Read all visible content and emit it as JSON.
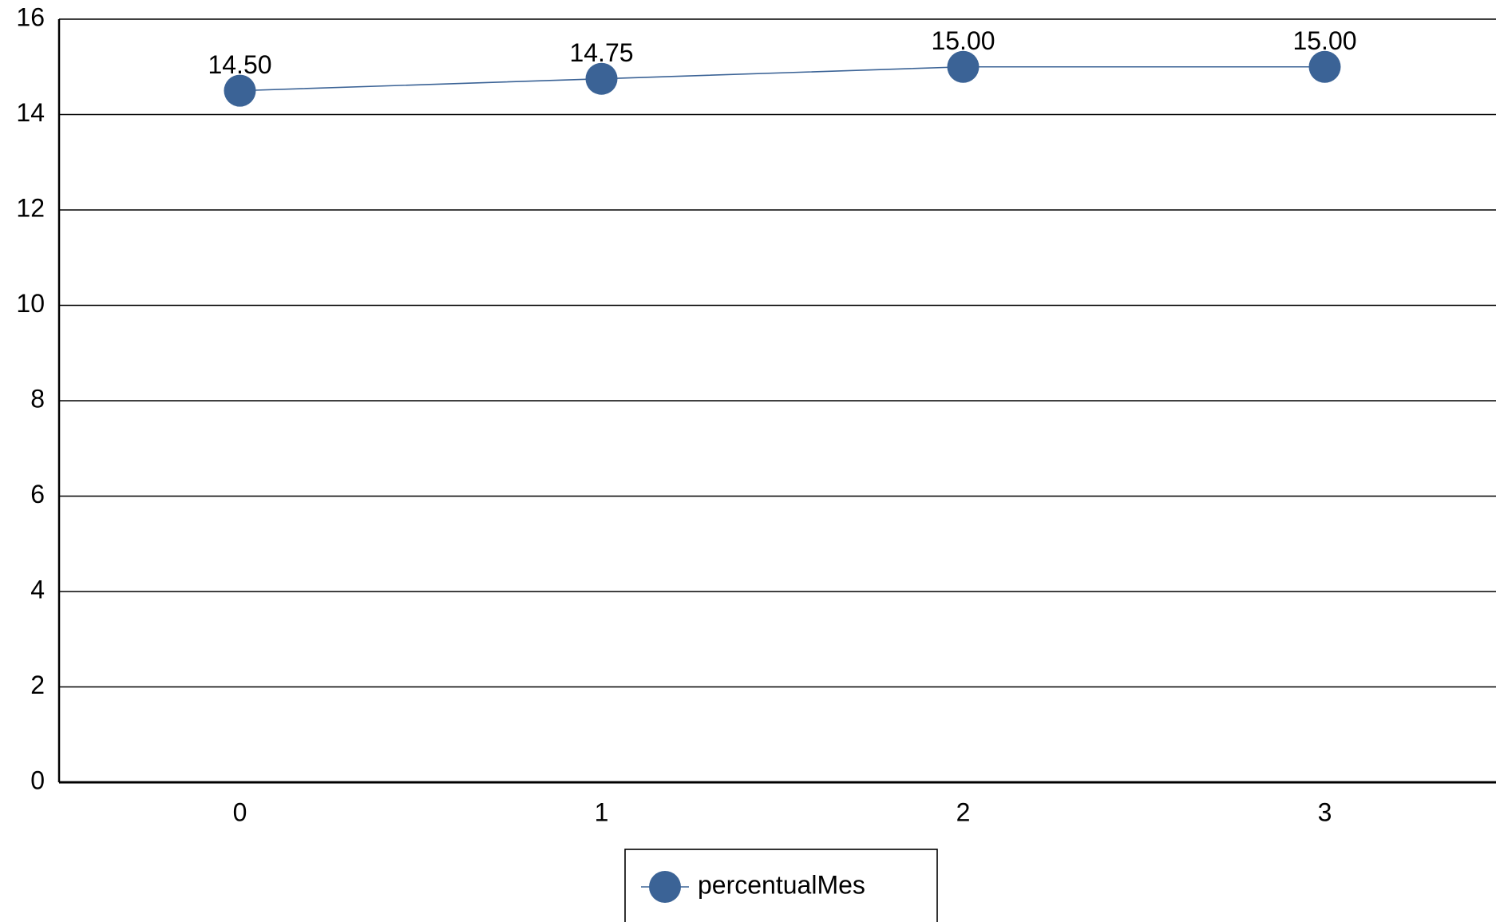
{
  "chart_data": {
    "type": "line",
    "categories": [
      "0",
      "1",
      "2",
      "3"
    ],
    "series": [
      {
        "name": "percentualMes",
        "color": "#3b6396",
        "values": [
          14.5,
          14.75,
          15,
          15
        ],
        "value_labels": [
          "14.50",
          "14.75",
          "15.00",
          "15.00"
        ]
      }
    ],
    "ylim": [
      0,
      16
    ],
    "yticks": [
      0,
      2,
      4,
      6,
      8,
      10,
      12,
      14,
      16
    ],
    "grid": true,
    "legend": "bottom"
  }
}
